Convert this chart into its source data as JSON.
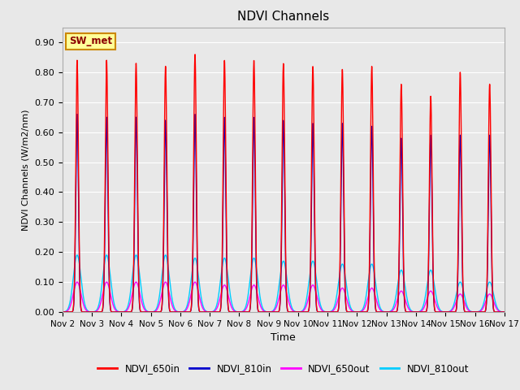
{
  "title": "NDVI Channels",
  "xlabel": "Time",
  "ylabel": "NDVI Channels (W/m2/nm)",
  "ylim": [
    0.0,
    0.95
  ],
  "xlim": [
    0,
    15
  ],
  "x_tick_labels": [
    "Nov 2",
    "Nov 3",
    "Nov 4",
    "Nov 5",
    "Nov 6",
    "Nov 7",
    "Nov 8",
    "Nov 9",
    "Nov 10",
    "Nov 11",
    "Nov 12",
    "Nov 13",
    "Nov 14",
    "Nov 15",
    "Nov 16",
    "Nov 17"
  ],
  "yticks": [
    0.0,
    0.1,
    0.2,
    0.3,
    0.4,
    0.5,
    0.6,
    0.7,
    0.8,
    0.9
  ],
  "colors": {
    "NDVI_650in": "#ff0000",
    "NDVI_810in": "#0000cc",
    "NDVI_650out": "#ff00ff",
    "NDVI_810out": "#00ccff"
  },
  "legend_label": "SW_met",
  "fig_bg": "#e8e8e8",
  "axes_bg": "#e8e8e8",
  "grid_color": "#ffffff",
  "peak_positions": [
    0.5,
    1.5,
    2.5,
    3.5,
    4.5,
    5.5,
    6.5,
    7.5,
    8.5,
    9.5,
    10.5,
    11.5,
    12.5,
    13.5,
    14.5
  ],
  "peaks_650in": [
    0.84,
    0.84,
    0.83,
    0.82,
    0.86,
    0.84,
    0.84,
    0.83,
    0.82,
    0.81,
    0.82,
    0.76,
    0.72,
    0.8,
    0.76
  ],
  "peaks_810in": [
    0.66,
    0.65,
    0.65,
    0.64,
    0.66,
    0.65,
    0.65,
    0.64,
    0.63,
    0.63,
    0.62,
    0.58,
    0.59,
    0.59,
    0.59
  ],
  "peaks_650out": [
    0.1,
    0.1,
    0.1,
    0.1,
    0.1,
    0.09,
    0.09,
    0.09,
    0.09,
    0.08,
    0.08,
    0.07,
    0.07,
    0.06,
    0.06
  ],
  "peaks_810out": [
    0.19,
    0.19,
    0.19,
    0.19,
    0.18,
    0.18,
    0.18,
    0.17,
    0.17,
    0.16,
    0.16,
    0.14,
    0.14,
    0.1,
    0.1
  ]
}
